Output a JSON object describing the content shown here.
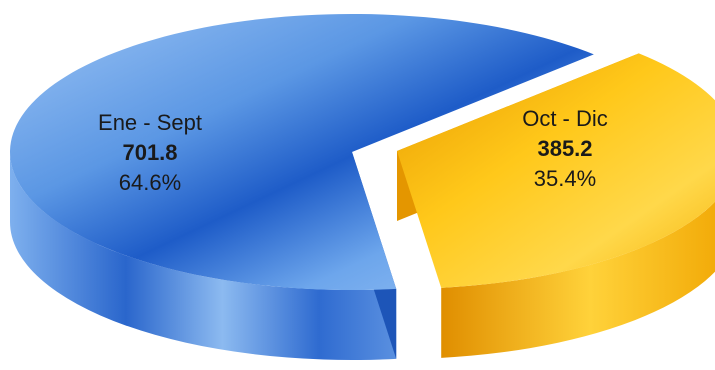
{
  "chart_data": {
    "type": "pie",
    "title": "",
    "slices": [
      {
        "label": "Ene - Sept",
        "value": 701.8,
        "percent": "64.6%",
        "color": "#3a7bdc"
      },
      {
        "label": "Oct - Dic",
        "value": 385.2,
        "percent": "35.4%",
        "color": "#f6b400"
      }
    ],
    "value_labels": [
      "701.8",
      "385.2"
    ],
    "legend": "none",
    "style": "3d-exploded"
  }
}
